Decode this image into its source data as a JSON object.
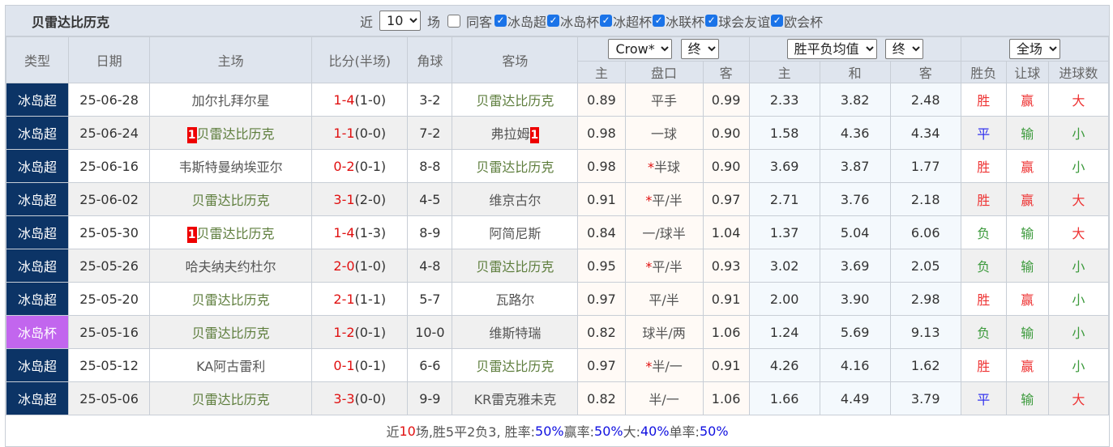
{
  "header": {
    "team": "贝雷达比历克",
    "recent_prefix": "近",
    "recent_count": "10",
    "recent_suffix": "场",
    "same_label": "同客",
    "filters": [
      "冰岛超",
      "冰岛杯",
      "冰超杯",
      "冰联杯",
      "球会友谊",
      "欧会杯"
    ]
  },
  "columns": {
    "type": "类型",
    "date": "日期",
    "home": "主场",
    "score": "比分(半场)",
    "corner": "角球",
    "away": "客场",
    "company": "Crow*",
    "handicap_mode": "终",
    "odds_type": "胜平负均值",
    "odds_mode": "终",
    "period": "全场",
    "ah_home": "主",
    "ah_line": "盘口",
    "ah_away": "客",
    "eu_home": "主",
    "eu_draw": "和",
    "eu_away": "客",
    "res_wl": "胜负",
    "res_ah": "让球",
    "res_ou": "进球数"
  },
  "colors": {
    "league": "#0c3466",
    "cup": "#c266ee",
    "win": "#ee3333",
    "draw": "#3333ee",
    "lose": "#3c9a3c"
  },
  "rows": [
    {
      "type": "冰岛超",
      "date": "25-06-28",
      "home": "加尔扎拜尔星",
      "home_badge": "",
      "home_self": false,
      "score": "1-4",
      "half": "(1-0)",
      "corner": "3-2",
      "away": "贝雷达比历克",
      "away_badge": "",
      "away_self": true,
      "ah_h": "0.89",
      "star": "",
      "line": "平手",
      "ah_a": "0.99",
      "eh": "2.33",
      "ed": "3.82",
      "ea": "2.48",
      "wl": "胜",
      "ah": "赢",
      "ou": "大"
    },
    {
      "type": "冰岛超",
      "date": "25-06-24",
      "home": "贝雷达比历克",
      "home_badge": "1",
      "home_self": true,
      "score": "1-1",
      "half": "(0-0)",
      "corner": "7-2",
      "away": "弗拉姆",
      "away_badge": "1",
      "away_self": false,
      "ah_h": "0.98",
      "star": "",
      "line": "一球",
      "ah_a": "0.90",
      "eh": "1.58",
      "ed": "4.36",
      "ea": "4.34",
      "wl": "平",
      "ah": "输",
      "ou": "小"
    },
    {
      "type": "冰岛超",
      "date": "25-06-16",
      "home": "韦斯特曼纳埃亚尔",
      "home_badge": "",
      "home_self": false,
      "score": "0-2",
      "half": "(0-1)",
      "corner": "8-8",
      "away": "贝雷达比历克",
      "away_badge": "",
      "away_self": true,
      "ah_h": "0.98",
      "star": "*",
      "line": "半球",
      "ah_a": "0.90",
      "eh": "3.69",
      "ed": "3.87",
      "ea": "1.77",
      "wl": "胜",
      "ah": "赢",
      "ou": "小"
    },
    {
      "type": "冰岛超",
      "date": "25-06-02",
      "home": "贝雷达比历克",
      "home_badge": "",
      "home_self": true,
      "score": "3-1",
      "half": "(2-0)",
      "corner": "4-5",
      "away": "维京古尔",
      "away_badge": "",
      "away_self": false,
      "ah_h": "0.91",
      "star": "*",
      "line": "平/半",
      "ah_a": "0.97",
      "eh": "2.71",
      "ed": "3.76",
      "ea": "2.18",
      "wl": "胜",
      "ah": "赢",
      "ou": "大"
    },
    {
      "type": "冰岛超",
      "date": "25-05-30",
      "home": "贝雷达比历克",
      "home_badge": "1",
      "home_self": true,
      "score": "1-4",
      "half": "(1-3)",
      "corner": "8-9",
      "away": "阿简尼斯",
      "away_badge": "",
      "away_self": false,
      "ah_h": "0.84",
      "star": "",
      "line": "一/球半",
      "ah_a": "1.04",
      "eh": "1.37",
      "ed": "5.04",
      "ea": "6.06",
      "wl": "负",
      "ah": "输",
      "ou": "大"
    },
    {
      "type": "冰岛超",
      "date": "25-05-26",
      "home": "哈夫纳夫约杜尔",
      "home_badge": "",
      "home_self": false,
      "score": "2-0",
      "half": "(1-0)",
      "corner": "4-8",
      "away": "贝雷达比历克",
      "away_badge": "",
      "away_self": true,
      "ah_h": "0.95",
      "star": "*",
      "line": "平/半",
      "ah_a": "0.93",
      "eh": "3.02",
      "ed": "3.69",
      "ea": "2.05",
      "wl": "负",
      "ah": "输",
      "ou": "小"
    },
    {
      "type": "冰岛超",
      "date": "25-05-20",
      "home": "贝雷达比历克",
      "home_badge": "",
      "home_self": true,
      "score": "2-1",
      "half": "(1-1)",
      "corner": "5-7",
      "away": "瓦路尔",
      "away_badge": "",
      "away_self": false,
      "ah_h": "0.97",
      "star": "",
      "line": "平/半",
      "ah_a": "0.91",
      "eh": "2.00",
      "ed": "3.90",
      "ea": "2.98",
      "wl": "胜",
      "ah": "赢",
      "ou": "小"
    },
    {
      "type": "冰岛杯",
      "date": "25-05-16",
      "home": "贝雷达比历克",
      "home_badge": "",
      "home_self": true,
      "score": "1-2",
      "half": "(0-1)",
      "corner": "10-0",
      "away": "维斯特瑞",
      "away_badge": "",
      "away_self": false,
      "ah_h": "0.82",
      "star": "",
      "line": "球半/两",
      "ah_a": "1.06",
      "eh": "1.24",
      "ed": "5.69",
      "ea": "9.13",
      "wl": "负",
      "ah": "输",
      "ou": "小"
    },
    {
      "type": "冰岛超",
      "date": "25-05-12",
      "home": "KA阿古雷利",
      "home_badge": "",
      "home_self": false,
      "score": "0-1",
      "half": "(0-1)",
      "corner": "6-6",
      "away": "贝雷达比历克",
      "away_badge": "",
      "away_self": true,
      "ah_h": "0.97",
      "star": "*",
      "line": "半/一",
      "ah_a": "0.91",
      "eh": "4.26",
      "ed": "4.16",
      "ea": "1.62",
      "wl": "胜",
      "ah": "赢",
      "ou": "小"
    },
    {
      "type": "冰岛超",
      "date": "25-05-06",
      "home": "贝雷达比历克",
      "home_badge": "",
      "home_self": true,
      "score": "3-3",
      "half": "(0-0)",
      "corner": "9-9",
      "away": "KR雷克雅未克",
      "away_badge": "",
      "away_self": false,
      "ah_h": "0.82",
      "star": "",
      "line": "半/一",
      "ah_a": "1.06",
      "eh": "1.66",
      "ed": "4.49",
      "ea": "3.79",
      "wl": "平",
      "ah": "输",
      "ou": "大"
    }
  ],
  "summary": {
    "p1": "近",
    "count": "10",
    "p2": "场,胜5平2负3, 胜率:",
    "win_rate": "50%",
    "p3": " 赢率:",
    "ah_rate": "50%",
    "p4": " 大:",
    "big_rate": "40%",
    "p5": " 单率:",
    "odd_rate": "50%"
  }
}
